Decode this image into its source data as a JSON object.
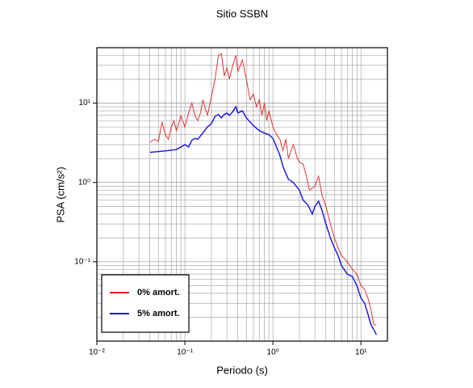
{
  "chart_data": {
    "type": "line",
    "title": "Sitio SSBN",
    "x_label": "Periodo (s)",
    "y_label": "PSA (cm/s²)",
    "x_scale": "log",
    "y_scale": "log",
    "grid": true,
    "legend": "lower left",
    "xlim": [
      0.01,
      20
    ],
    "ylim": [
      0.01,
      50
    ],
    "xticks": [
      {
        "value": 0.01,
        "label": "10⁻²"
      },
      {
        "value": 0.1,
        "label": "10⁻¹"
      },
      {
        "value": 1,
        "label": "10⁰"
      },
      {
        "value": 10,
        "label": "10¹"
      }
    ],
    "yticks": [
      {
        "value": 0.1,
        "label": "10⁻¹"
      },
      {
        "value": 1,
        "label": "10⁰"
      },
      {
        "value": 10,
        "label": "10¹"
      }
    ],
    "series": [
      {
        "name": "0% amort.",
        "color": "#e02020",
        "x": [
          0.04,
          0.045,
          0.05,
          0.055,
          0.06,
          0.065,
          0.07,
          0.075,
          0.08,
          0.085,
          0.09,
          0.1,
          0.11,
          0.12,
          0.13,
          0.14,
          0.15,
          0.16,
          0.18,
          0.2,
          0.22,
          0.24,
          0.26,
          0.28,
          0.3,
          0.32,
          0.35,
          0.38,
          0.4,
          0.45,
          0.5,
          0.55,
          0.6,
          0.65,
          0.7,
          0.75,
          0.8,
          0.85,
          0.9,
          1.0,
          1.1,
          1.2,
          1.3,
          1.4,
          1.5,
          1.7,
          1.9,
          2.0,
          2.2,
          2.4,
          2.6,
          3.0,
          3.3,
          3.6,
          4.0,
          4.5,
          5.0,
          5.5,
          6.0,
          7.0,
          8.0,
          9.0,
          10,
          11,
          12,
          13,
          14,
          15
        ],
        "values": [
          3.2,
          3.5,
          3.3,
          5.8,
          4.0,
          3.5,
          5.0,
          6.0,
          4.5,
          5.5,
          7.0,
          5.0,
          7.5,
          10,
          7.0,
          6.0,
          7.5,
          11,
          7,
          12,
          20,
          40,
          42,
          22,
          28,
          20,
          30,
          40,
          25,
          35,
          20,
          11,
          13,
          9,
          11,
          7,
          10,
          6,
          8,
          5,
          4,
          3.5,
          2.5,
          3.5,
          2.0,
          3.0,
          2.0,
          1.8,
          1.7,
          1.2,
          0.8,
          0.9,
          1.2,
          0.7,
          0.5,
          0.3,
          0.2,
          0.15,
          0.12,
          0.1,
          0.08,
          0.07,
          0.05,
          0.045,
          0.035,
          0.025,
          0.016,
          0.016
        ]
      },
      {
        "name": "5% amort.",
        "color": "#1010e0",
        "x": [
          0.04,
          0.05,
          0.06,
          0.07,
          0.08,
          0.09,
          0.1,
          0.11,
          0.12,
          0.13,
          0.14,
          0.16,
          0.18,
          0.2,
          0.22,
          0.24,
          0.26,
          0.28,
          0.3,
          0.32,
          0.35,
          0.38,
          0.4,
          0.45,
          0.5,
          0.55,
          0.6,
          0.7,
          0.8,
          0.9,
          1.0,
          1.1,
          1.2,
          1.3,
          1.4,
          1.5,
          1.7,
          2.0,
          2.2,
          2.5,
          2.8,
          3.0,
          3.3,
          3.6,
          4.0,
          4.5,
          5.0,
          5.5,
          6.0,
          7.0,
          8.0,
          9.0,
          10,
          11,
          12,
          13,
          14,
          15
        ],
        "values": [
          2.4,
          2.45,
          2.5,
          2.55,
          2.6,
          2.8,
          3.0,
          2.8,
          3.4,
          3.6,
          3.5,
          4.2,
          5.0,
          5.5,
          6.8,
          7.2,
          6.5,
          7.2,
          7.5,
          7.0,
          7.8,
          9.0,
          7.5,
          8.0,
          6.5,
          5.8,
          5.2,
          4.5,
          4.2,
          4.0,
          3.6,
          2.8,
          2.2,
          1.6,
          1.3,
          1.1,
          1.0,
          0.8,
          0.6,
          0.52,
          0.4,
          0.5,
          0.58,
          0.45,
          0.3,
          0.2,
          0.15,
          0.12,
          0.09,
          0.07,
          0.065,
          0.05,
          0.035,
          0.03,
          0.022,
          0.016,
          0.014,
          0.012
        ]
      }
    ]
  }
}
